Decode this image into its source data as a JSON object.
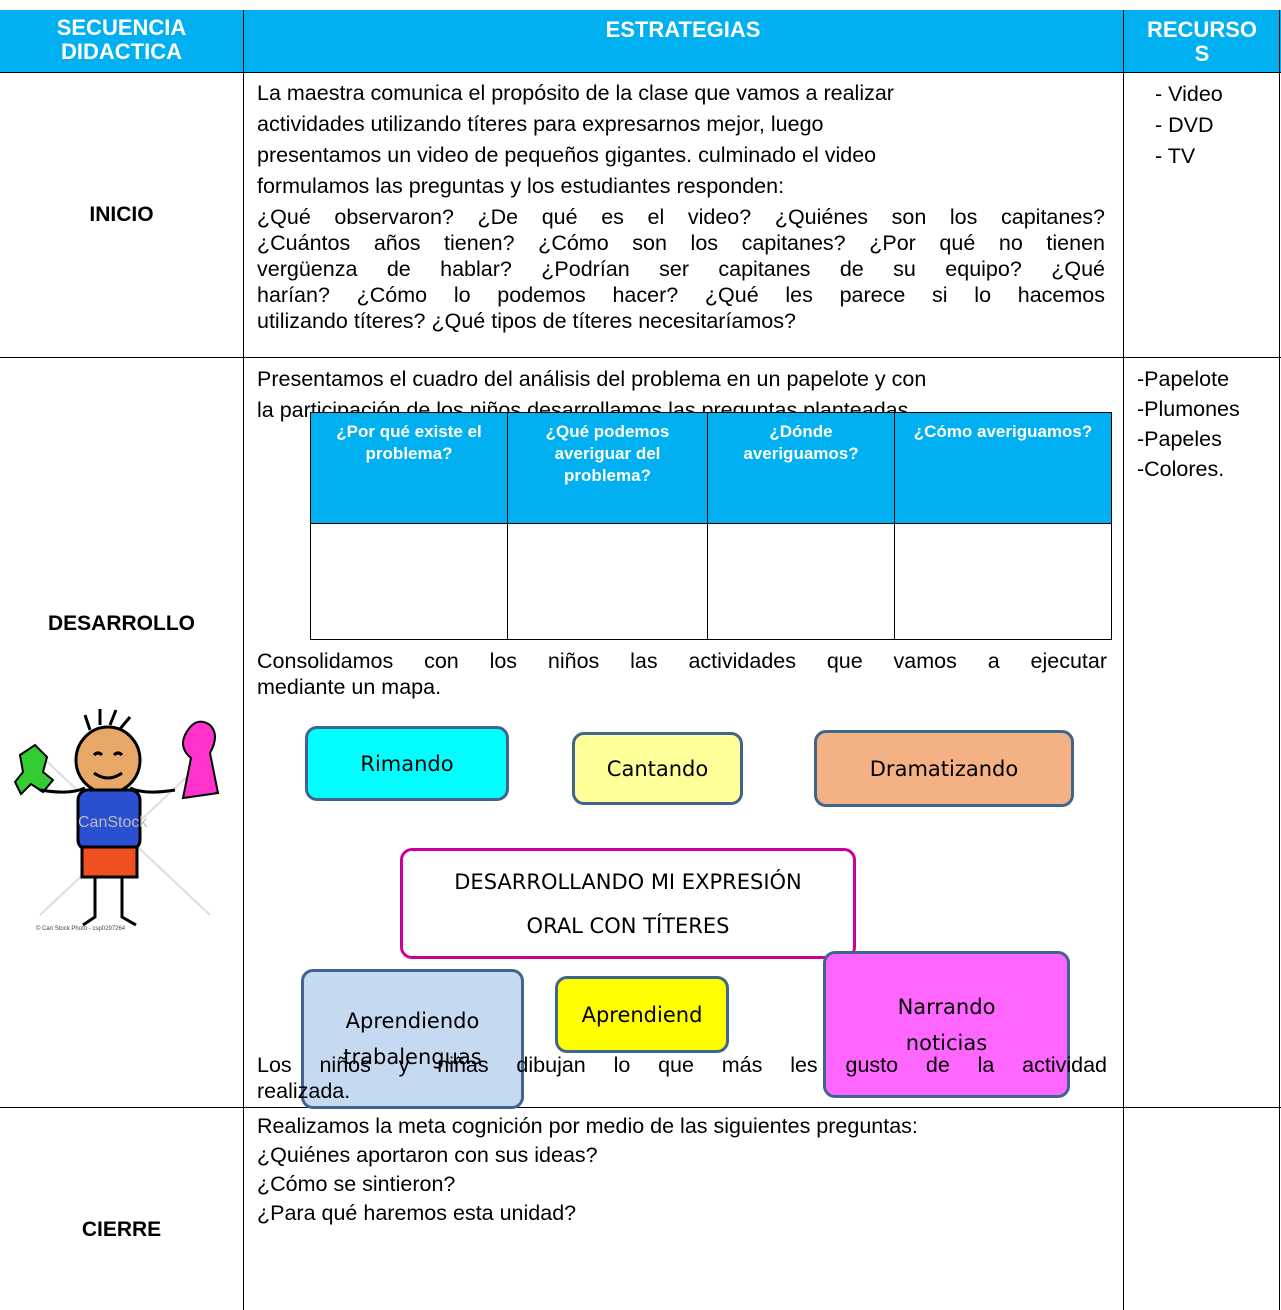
{
  "header": {
    "sequence": "SECUENCIA DIDACTICA",
    "strategies": "ESTRATEGIAS",
    "resources": "RECURSOS"
  },
  "inicio": {
    "label": "INICIO",
    "intro_lines": [
      "La maestra comunica   el propósito de la clase  que    vamos a realizar",
      "actividades utilizando títeres para expresarnos mejor, luego",
      "presentamos un video de pequeños gigantes. culminado el video",
      "formulamos  las  preguntas y los estudiantes responden:"
    ],
    "question_lines": [
      "¿Qué observaron? ¿De qué es el video? ¿Quiénes son los capitanes?",
      "¿Cuántos años tienen? ¿Cómo son los capitanes? ¿Por qué no tienen",
      "vergüenza de hablar? ¿Podrían ser capitanes de su equipo? ¿Qué",
      "harían? ¿Cómo lo podemos hacer? ¿Qué les parece si lo hacemos",
      "utilizando títeres? ¿Qué tipos de títeres necesitaríamos?"
    ],
    "resources": [
      "- Video",
      "- DVD",
      "- TV"
    ]
  },
  "desarrollo": {
    "label": "DESARROLLO",
    "intro_lines": [
      "Presentamos el cuadro del análisis del problema  en un papelote y con",
      "la participación de los niños desarrollamos las preguntas planteadas."
    ],
    "analysis_table": {
      "headers": [
        "¿Por qué existe el problema?",
        "¿Qué podemos averiguar del problema?",
        "¿Dónde averiguamos?",
        "¿Cómo averiguamos?"
      ]
    },
    "map_intro_lines": [
      "Consolidamos con los niños las actividades que vamos a ejecutar",
      "mediante un mapa."
    ],
    "map": {
      "center": "DESARROLLANDO MI EXPRESIÓN ORAL CON TÍTERES",
      "nodes": [
        "Rimando",
        "Cantando",
        "Dramatizando",
        "Aprendiendo trabalenguas",
        "Aprendiend",
        "Narrando noticias"
      ]
    },
    "closing_lines": [
      "Los niños y niñas dibujan lo que más les gusto de la actividad",
      "realizada."
    ],
    "image": {
      "watermark": "CanStock",
      "caption": "© Can Stock Photo - csp0297264"
    },
    "resources": [
      "-Papelote",
      "-Plumones",
      "-Papeles",
      "-Colores."
    ]
  },
  "cierre": {
    "label": "CIERRE",
    "lines": [
      "Realizamos la meta cognición  por medio de las siguientes preguntas:",
      "¿Quiénes aportaron con sus ideas?",
      "¿Cómo se sintieron?",
      "¿Para qué haremos esta unidad?"
    ]
  }
}
